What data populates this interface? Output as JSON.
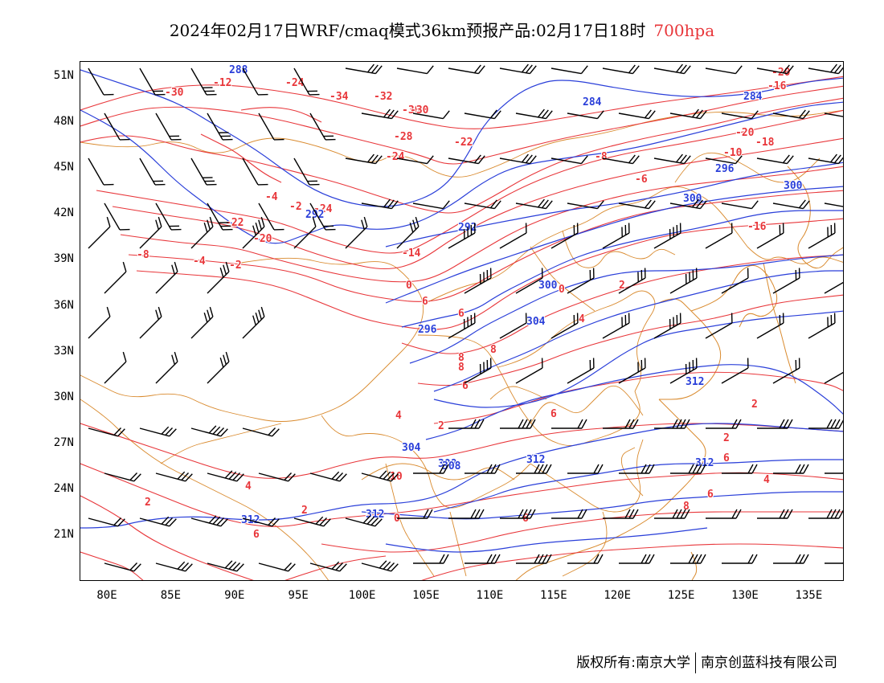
{
  "title": {
    "main": "2024年02月17日WRF/cmaq模式36km预报产品:02月17日18时",
    "level": "700hpa"
  },
  "colors": {
    "temperature_contour": "#e8363a",
    "height_contour": "#2a3fd9",
    "boundary": "#d98a2e",
    "wind_barb": "#000000"
  },
  "axes": {
    "lat_labels": [
      "51N",
      "48N",
      "45N",
      "42N",
      "39N",
      "36N",
      "33N",
      "30N",
      "27N",
      "24N",
      "21N"
    ],
    "lon_labels": [
      "80E",
      "85E",
      "90E",
      "95E",
      "100E",
      "105E",
      "110E",
      "115E",
      "120E",
      "125E",
      "130E",
      "135E"
    ]
  },
  "temperature_labels": [
    "-20",
    "-16",
    "-24",
    "-12",
    "-30",
    "-34",
    "-32",
    "-30",
    "-30",
    "-28",
    "-24",
    "-22",
    "-20",
    "-18",
    "-10",
    "-8",
    "-6",
    "-4",
    "-2",
    "-24",
    "-22",
    "-20",
    "-16",
    "-14",
    "-8",
    "-4",
    "-2",
    "0",
    "2",
    "4",
    "6",
    "6",
    "8",
    "8",
    "8",
    "6",
    "2",
    "4",
    "6",
    "2",
    "0",
    "2",
    "4",
    "6",
    "6",
    "8",
    "10",
    "4",
    "2",
    "0",
    "2",
    "6",
    "6"
  ],
  "height_labels": [
    "288",
    "284",
    "284",
    "292",
    "292",
    "296",
    "300",
    "300",
    "296",
    "300",
    "304",
    "304",
    "308",
    "308",
    "312",
    "312",
    "312",
    "312",
    "312"
  ],
  "wind_barb_icon": "wind-barb-icon",
  "footer": {
    "left": "版权所有:南京大学",
    "right": "南京创蓝科技有限公司"
  }
}
